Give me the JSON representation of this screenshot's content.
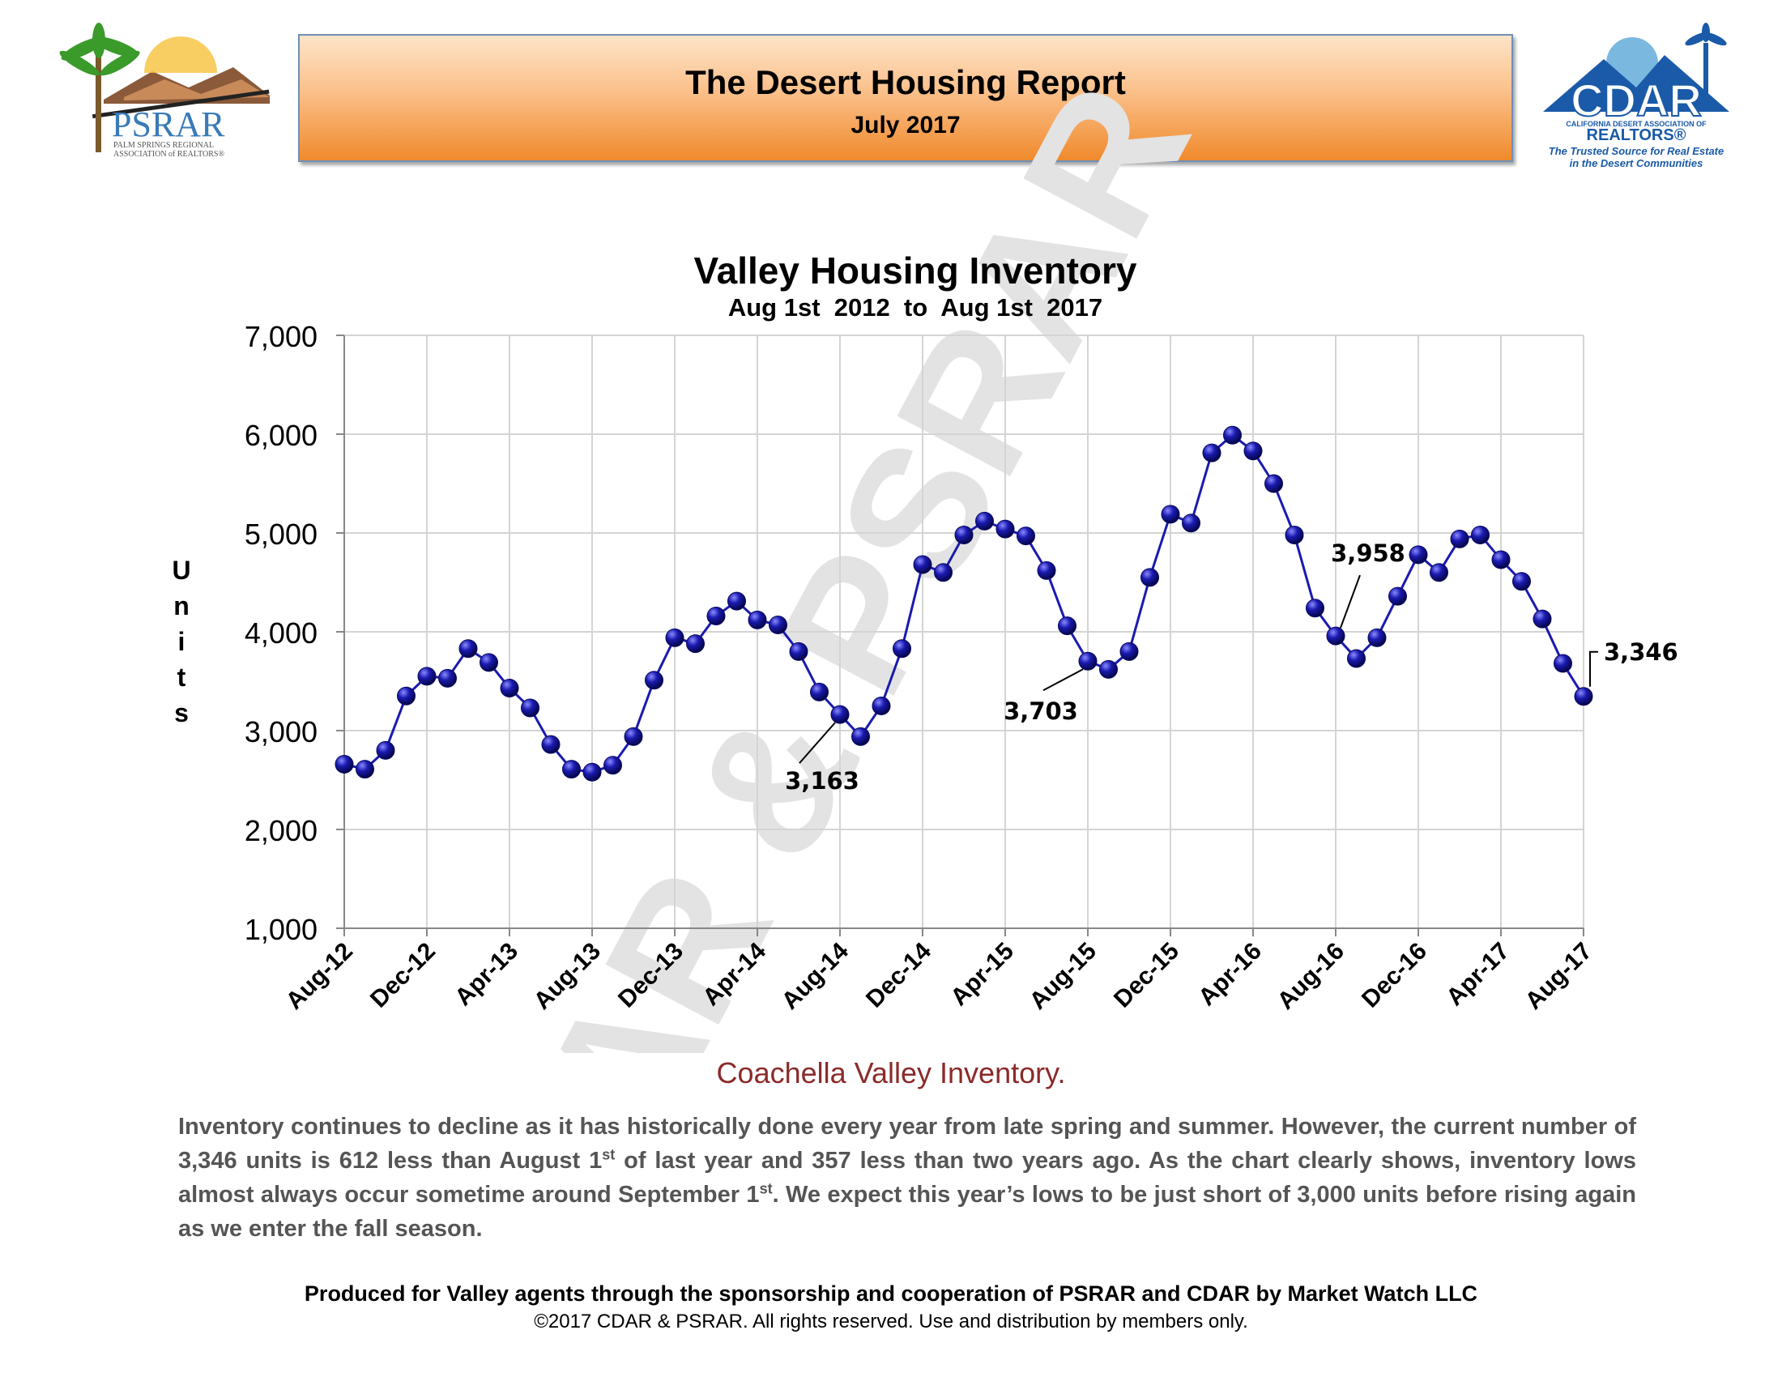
{
  "header": {
    "title": "The Desert Housing Report",
    "subtitle": "July 2017",
    "left_logo_text": "PSRAR",
    "left_logo_sub1": "PALM SPRINGS REGIONAL",
    "left_logo_sub2": "ASSOCIATION of REALTORS®",
    "right_logo_text": "CDAR",
    "right_logo_sub1": "CALIFORNIA DESERT ASSOCIATION OF",
    "right_logo_sub2": "REALTORS®",
    "right_tagline1": "The Trusted Source for Real Estate",
    "right_tagline2": "in the Desert Communities"
  },
  "watermark": "CDAR & PSRAR",
  "chart_data": {
    "type": "line",
    "title": "Valley Housing Inventory",
    "subtitle": "Aug 1st  2012  to  Aug 1st  2017",
    "ylabel": "Units",
    "xlabel": "",
    "ylim": [
      1000,
      7000
    ],
    "yticks": [
      1000,
      2000,
      3000,
      4000,
      5000,
      6000,
      7000
    ],
    "ytick_labels": [
      "1,000",
      "2,000",
      "3,000",
      "4,000",
      "5,000",
      "6,000",
      "7,000"
    ],
    "x_tick_labels": [
      "Aug-12",
      "Dec-12",
      "Apr-13",
      "Aug-13",
      "Dec-13",
      "Apr-14",
      "Aug-14",
      "Dec-14",
      "Apr-15",
      "Aug-15",
      "Dec-15",
      "Apr-16",
      "Aug-16",
      "Dec-16",
      "Apr-17",
      "Aug-17"
    ],
    "grid": true,
    "color": "#1a1ab0",
    "values": [
      2660,
      2610,
      2800,
      3350,
      3550,
      3530,
      3830,
      3690,
      3430,
      3230,
      2860,
      2610,
      2580,
      2650,
      2940,
      3510,
      3940,
      3880,
      4160,
      4310,
      4120,
      4070,
      3800,
      3390,
      3163,
      2940,
      3250,
      3830,
      4680,
      4600,
      4980,
      5120,
      5040,
      4970,
      4620,
      4060,
      3703,
      3620,
      3800,
      4550,
      5190,
      5100,
      5810,
      5990,
      5830,
      5500,
      4980,
      4240,
      3958,
      3730,
      3940,
      4360,
      4780,
      4600,
      4940,
      4980,
      4730,
      4510,
      4130,
      3680,
      3346
    ],
    "annotations": [
      {
        "label": "3,163",
        "index": 24
      },
      {
        "label": "3,703",
        "index": 36
      },
      {
        "label": "3,958",
        "index": 48
      },
      {
        "label": "3,346",
        "index": 60
      }
    ]
  },
  "caption": "Coachella Valley Inventory.",
  "body": {
    "p1": "Inventory continues to decline as it has historically done every year from late spring and summer.  However, the current number of 3,346 units is 612 less than August 1",
    "sup1": "st",
    "p2": " of last year and 357 less than two years ago. As the chart clearly shows, inventory lows almost always occur sometime around September 1",
    "sup2": "st",
    "p3": ". We expect this year’s lows to be just short of 3,000 units before rising again as we enter the fall season."
  },
  "footer": {
    "line1": "Produced for Valley agents through the sponsorship and cooperation of PSRAR and CDAR by Market Watch LLC",
    "line2": "©2017 CDAR & PSRAR.  All rights reserved.  Use and distribution by members only."
  }
}
